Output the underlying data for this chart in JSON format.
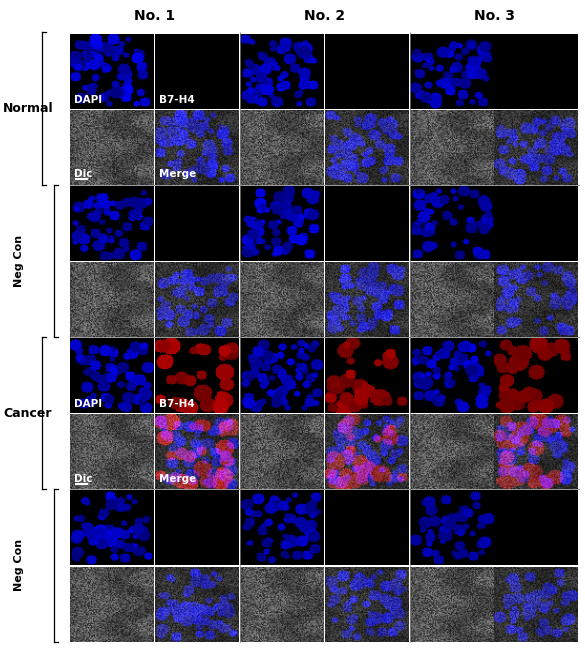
{
  "col_labels": [
    "No. 1",
    "No. 2",
    "No. 3"
  ],
  "row_group_labels": [
    "Normal",
    "Cancer"
  ],
  "sub_row_labels": [
    "Neg Con",
    "Neg Con"
  ],
  "background": "#ffffff",
  "label_fontsize": 9,
  "col_fontsize": 10,
  "annotation_fontsize": 7.5,
  "figure_width": 5.85,
  "figure_height": 6.48,
  "grid_color": "#888888"
}
